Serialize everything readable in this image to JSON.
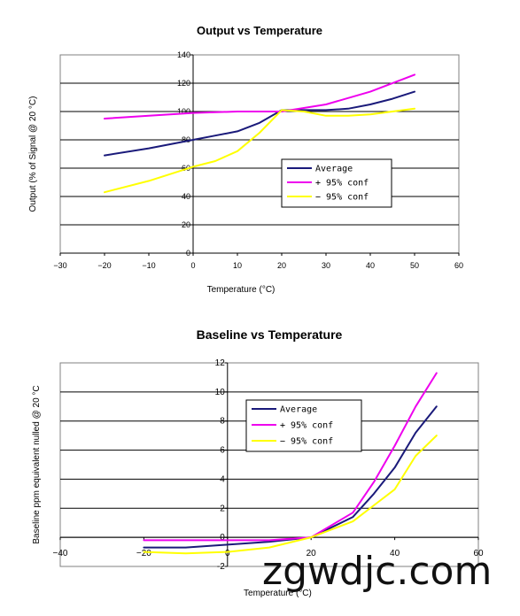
{
  "chart_data": [
    {
      "type": "line",
      "title": "Output vs Temperature",
      "xlabel": "Temperature (°C)",
      "ylabel": "Output (% of Signal @ 20 °C)",
      "xlim": [
        -30,
        60
      ],
      "ylim": [
        0,
        140
      ],
      "x_ticks": [
        "-30",
        "-20",
        "-10",
        "0",
        "10",
        "20",
        "30",
        "40",
        "50",
        "60"
      ],
      "y_ticks": [
        "0",
        "20",
        "40",
        "60",
        "80",
        "100",
        "120",
        "140"
      ],
      "grid": "horizontal",
      "legend_position": "center-right",
      "series": [
        {
          "name": "Average",
          "color": "#1a1a7a",
          "x": [
            -20,
            -10,
            0,
            5,
            10,
            15,
            20,
            25,
            30,
            35,
            40,
            45,
            50
          ],
          "y": [
            69,
            74,
            80,
            83,
            86,
            92,
            101,
            101,
            101,
            102,
            105,
            109,
            114
          ]
        },
        {
          "name": "+ 95% conf",
          "color": "#ee00ee",
          "x": [
            -20,
            -10,
            0,
            10,
            20,
            30,
            40,
            50
          ],
          "y": [
            95,
            97,
            99,
            100,
            100,
            105,
            114,
            126
          ]
        },
        {
          "name": "− 95% conf",
          "color": "#ffff00",
          "x": [
            -20,
            -10,
            0,
            5,
            10,
            15,
            20,
            25,
            30,
            35,
            40,
            45,
            50
          ],
          "y": [
            43,
            51,
            61,
            65,
            72,
            85,
            101,
            100,
            97,
            97,
            98,
            100,
            102
          ]
        }
      ]
    },
    {
      "type": "line",
      "title": "Baseline vs Temperature",
      "xlabel": "Temperature (°C)",
      "ylabel": "Baseline ppm equivalent nulled @ 20 °C",
      "xlim": [
        -40,
        60
      ],
      "ylim": [
        -2,
        12
      ],
      "x_ticks": [
        "-40",
        "-20",
        "0",
        "20",
        "40",
        "60"
      ],
      "y_ticks": [
        "-2",
        "0",
        "2",
        "4",
        "6",
        "8",
        "10",
        "12"
      ],
      "grid": "horizontal",
      "legend_position": "center",
      "series": [
        {
          "name": "Average",
          "color": "#1a1a7a",
          "x": [
            -20,
            -10,
            0,
            10,
            20,
            30,
            35,
            40,
            45,
            50
          ],
          "y": [
            -0.7,
            -0.7,
            -0.5,
            -0.3,
            0,
            1.4,
            3.0,
            4.8,
            7.2,
            9.0
          ]
        },
        {
          "name": "+ 95% conf",
          "color": "#ee00ee",
          "x": [
            -20,
            -10,
            0,
            10,
            20,
            30,
            35,
            40,
            45,
            50
          ],
          "y": [
            -0.2,
            -0.2,
            -0.2,
            -0.2,
            0,
            1.7,
            3.8,
            6.3,
            9.0,
            11.3
          ]
        },
        {
          "name": "− 95% conf",
          "color": "#ffff00",
          "x": [
            -20,
            -10,
            0,
            10,
            20,
            30,
            35,
            40,
            45,
            50
          ],
          "y": [
            -1.0,
            -1.1,
            -1.0,
            -0.7,
            0,
            1.1,
            2.2,
            3.3,
            5.6,
            7.0
          ]
        }
      ]
    }
  ],
  "watermark": {
    "text": "zgwdjc.com"
  }
}
